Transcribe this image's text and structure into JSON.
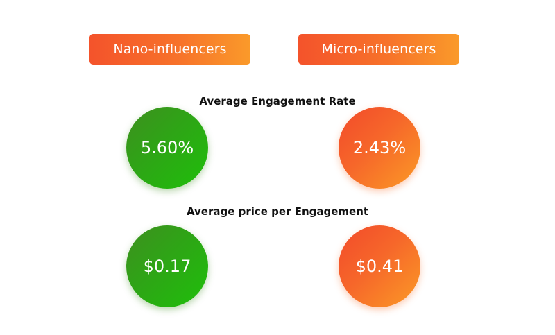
{
  "colors": {
    "orange_start": "#f4532b",
    "orange_end": "#fa9a2a",
    "green_start": "#3e8f1f",
    "green_end": "#1fbf0a",
    "text_dark": "#111111"
  },
  "headers": {
    "nano": "Nano-influencers",
    "micro": "Micro-influencers"
  },
  "metrics": [
    {
      "title": "Average Engagement Rate",
      "nano_value": "5.60%",
      "micro_value": "2.43%"
    },
    {
      "title": "Average price per Engagement",
      "nano_value": "$0.17",
      "micro_value": "$0.41"
    }
  ]
}
